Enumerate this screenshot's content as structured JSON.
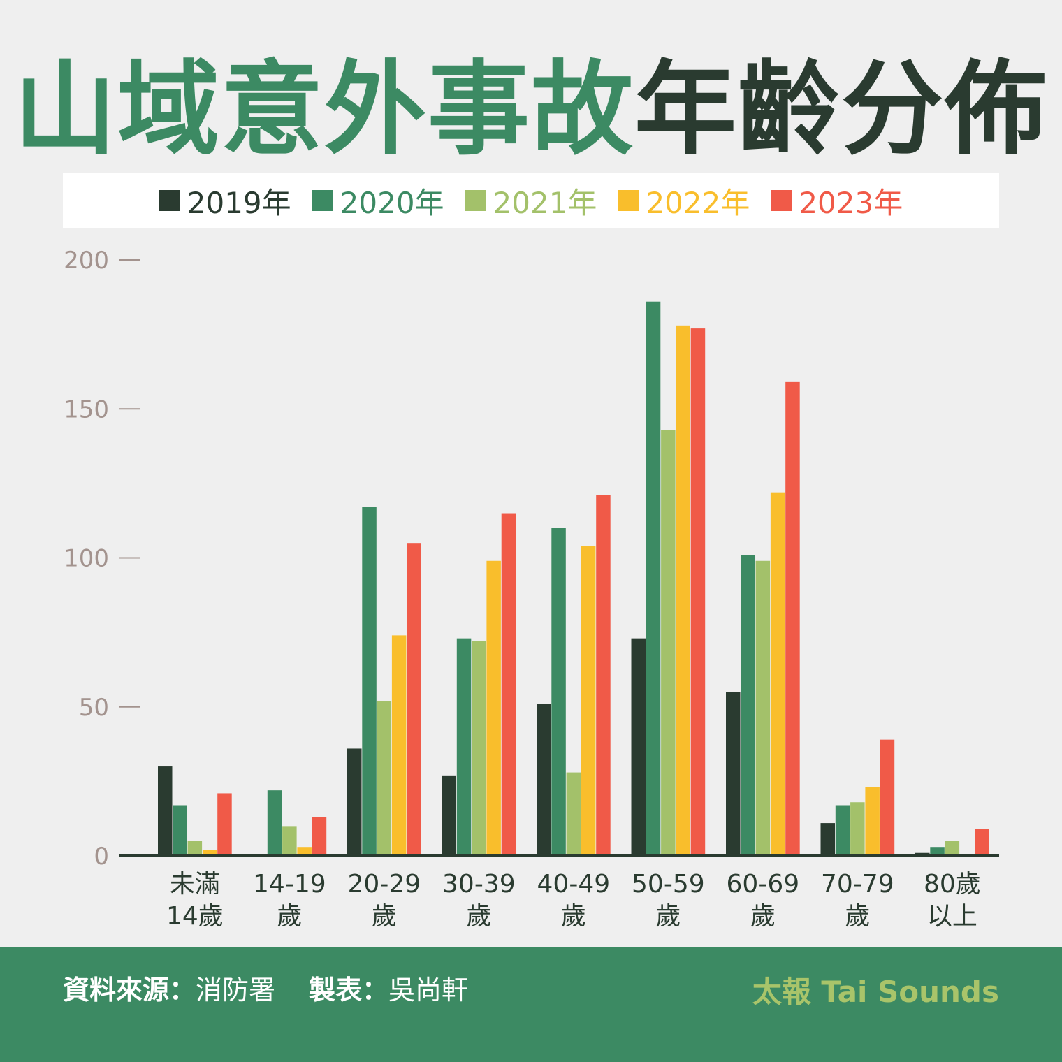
{
  "title": {
    "part1": "山域意外事故",
    "part2": "年齡分佈"
  },
  "colors": {
    "title_green": "#3c8a63",
    "title_dark": "#2a3b30",
    "footer_bg": "#3c8a63",
    "brand": "#a9c46a",
    "axis_tick": "#a3938e"
  },
  "footer": {
    "source_label": "資料來源：",
    "source_value": "消防署",
    "maker_label": "製表：",
    "maker_value": "吳尚軒",
    "brand": "太報 Tai Sounds"
  },
  "chart_data": {
    "type": "bar",
    "title": "",
    "xlabel": "",
    "ylabel": "",
    "ylim": [
      0,
      200
    ],
    "yticks": [
      "0",
      "50",
      "100",
      "150",
      "200"
    ],
    "grid": false,
    "legend_position": "top",
    "categories": [
      [
        "未滿",
        "14歲"
      ],
      [
        "14-19",
        "歲"
      ],
      [
        "20-29",
        "歲"
      ],
      [
        "30-39",
        "歲"
      ],
      [
        "40-49",
        "歲"
      ],
      [
        "50-59",
        "歲"
      ],
      [
        "60-69",
        "歲"
      ],
      [
        "70-79",
        "歲"
      ],
      [
        "80歲",
        "以上"
      ]
    ],
    "series": [
      {
        "name": "2019年",
        "color": "#2a3b30",
        "values": [
          30,
          0,
          36,
          27,
          51,
          73,
          55,
          11,
          1
        ]
      },
      {
        "name": "2020年",
        "color": "#3c8a63",
        "values": [
          17,
          22,
          117,
          73,
          110,
          186,
          101,
          17,
          3
        ]
      },
      {
        "name": "2021年",
        "color": "#a3c16a",
        "values": [
          5,
          10,
          52,
          72,
          28,
          143,
          99,
          18,
          5
        ]
      },
      {
        "name": "2022年",
        "color": "#f9be2c",
        "values": [
          2,
          3,
          74,
          99,
          104,
          178,
          122,
          23,
          0
        ]
      },
      {
        "name": "2023年",
        "color": "#f05a48",
        "values": [
          21,
          13,
          105,
          115,
          121,
          177,
          159,
          39,
          9
        ]
      }
    ]
  }
}
